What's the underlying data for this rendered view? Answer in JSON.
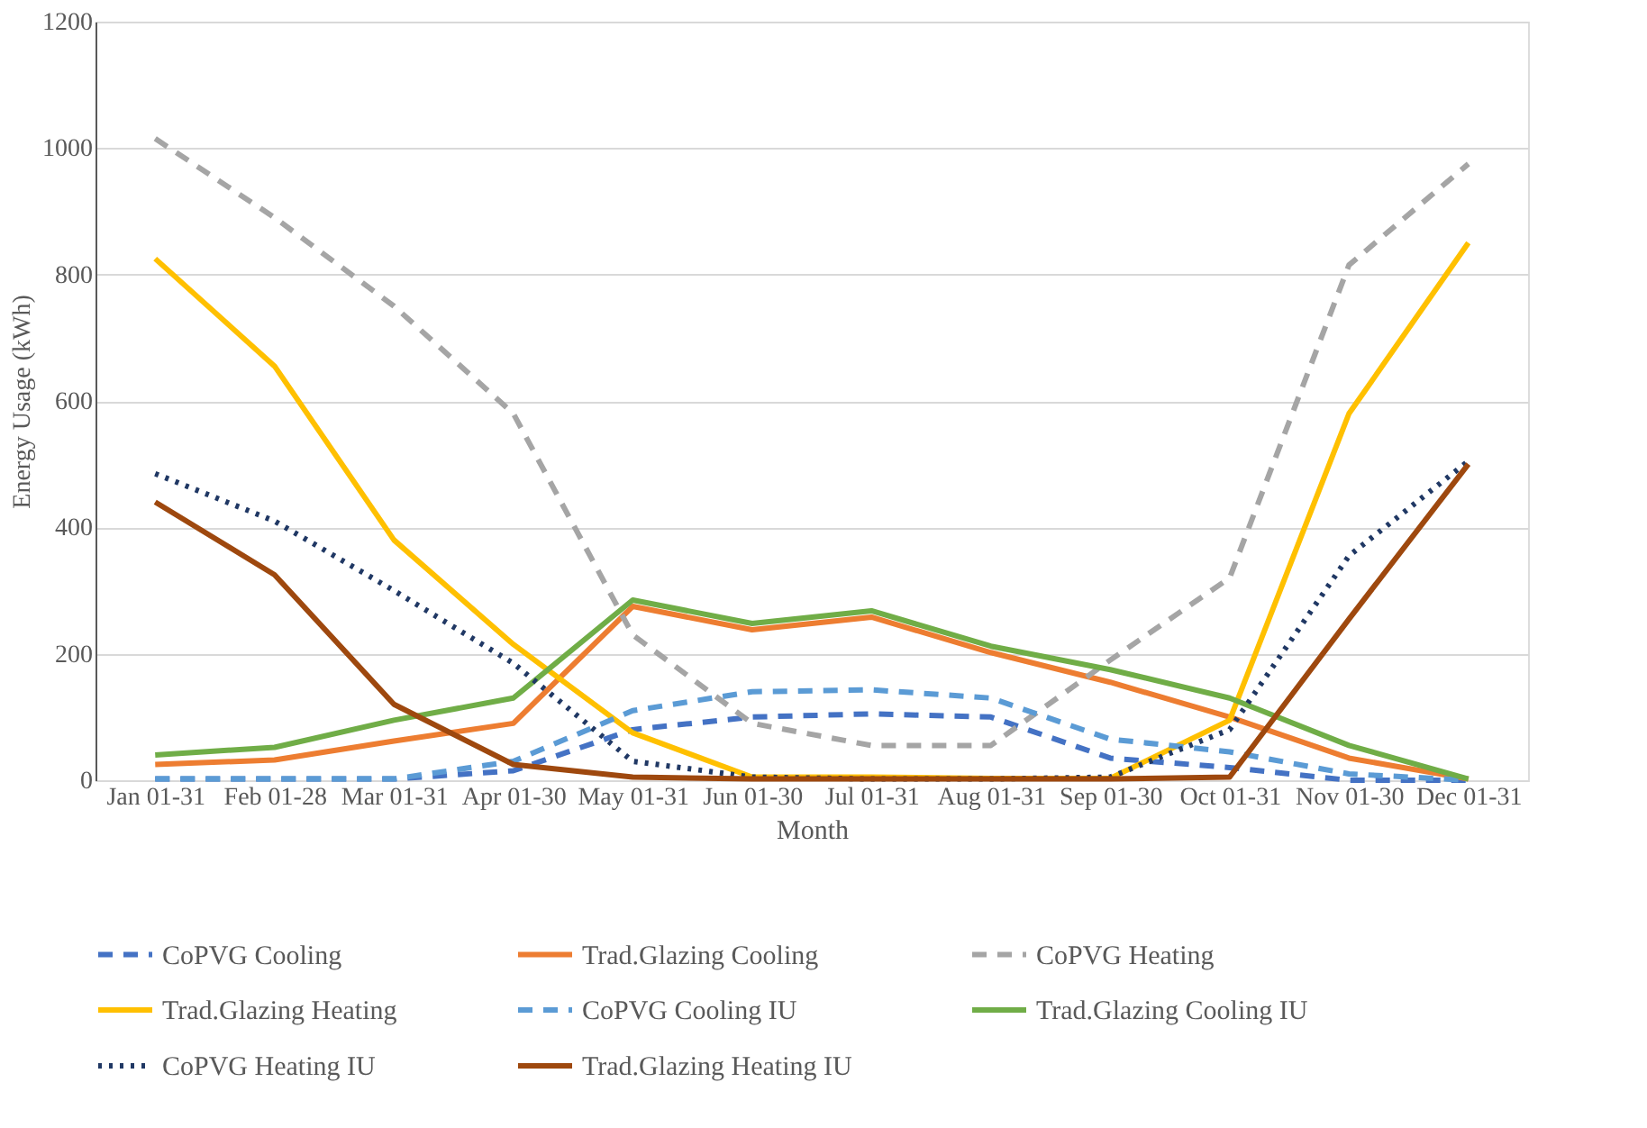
{
  "chart_data": {
    "type": "line",
    "xlabel": "Month",
    "ylabel": "Energy Usage (kWh)",
    "categories": [
      "Jan 01-31",
      "Feb 01-28",
      "Mar 01-31",
      "Apr 01-30",
      "May 01-31",
      "Jun 01-30",
      "Jul 01-31",
      "Aug 01-31",
      "Sep 01-30",
      "Oct 01-31",
      "Nov 01-30",
      "Dec 01-31"
    ],
    "ylim": [
      0,
      1200
    ],
    "yticks": [
      0,
      200,
      400,
      600,
      800,
      1000,
      1200
    ],
    "grid": "y",
    "legend": "bottom",
    "marker": "none",
    "series": [
      {
        "name": "CoPVG Cooling",
        "color": "#4472c4",
        "line_style": "dashed",
        "values": [
          2,
          2,
          2,
          15,
          80,
          100,
          105,
          100,
          35,
          20,
          0,
          0
        ]
      },
      {
        "name": "Trad.Glazing Cooling",
        "color": "#ed7d31",
        "line_style": "solid",
        "values": [
          25,
          32,
          62,
          90,
          275,
          238,
          258,
          202,
          155,
          100,
          35,
          2
        ]
      },
      {
        "name": "CoPVG Heating",
        "color": "#a5a5a5",
        "line_style": "dashed",
        "values": [
          1015,
          890,
          750,
          580,
          230,
          90,
          55,
          55,
          190,
          320,
          815,
          975
        ]
      },
      {
        "name": "Trad.Glazing Heating",
        "color": "#ffc000",
        "line_style": "solid",
        "values": [
          825,
          655,
          380,
          215,
          75,
          5,
          5,
          3,
          3,
          95,
          580,
          850
        ]
      },
      {
        "name": "CoPVG Cooling IU",
        "color": "#5b9bd5",
        "line_style": "dashed",
        "values": [
          2,
          2,
          2,
          30,
          110,
          140,
          143,
          130,
          65,
          45,
          10,
          0
        ]
      },
      {
        "name": "Trad.Glazing Cooling IU",
        "color": "#70ad47",
        "line_style": "solid",
        "values": [
          40,
          52,
          95,
          130,
          285,
          248,
          268,
          212,
          175,
          130,
          55,
          2
        ]
      },
      {
        "name": "CoPVG Heating IU",
        "color": "#203864",
        "line_style": "dotted",
        "values": [
          485,
          410,
          300,
          185,
          30,
          5,
          2,
          2,
          5,
          80,
          355,
          505
        ]
      },
      {
        "name": "Trad.Glazing Heating IU",
        "color": "#9e480e",
        "line_style": "solid",
        "values": [
          440,
          325,
          120,
          25,
          5,
          2,
          2,
          2,
          2,
          5,
          255,
          500
        ]
      }
    ]
  }
}
